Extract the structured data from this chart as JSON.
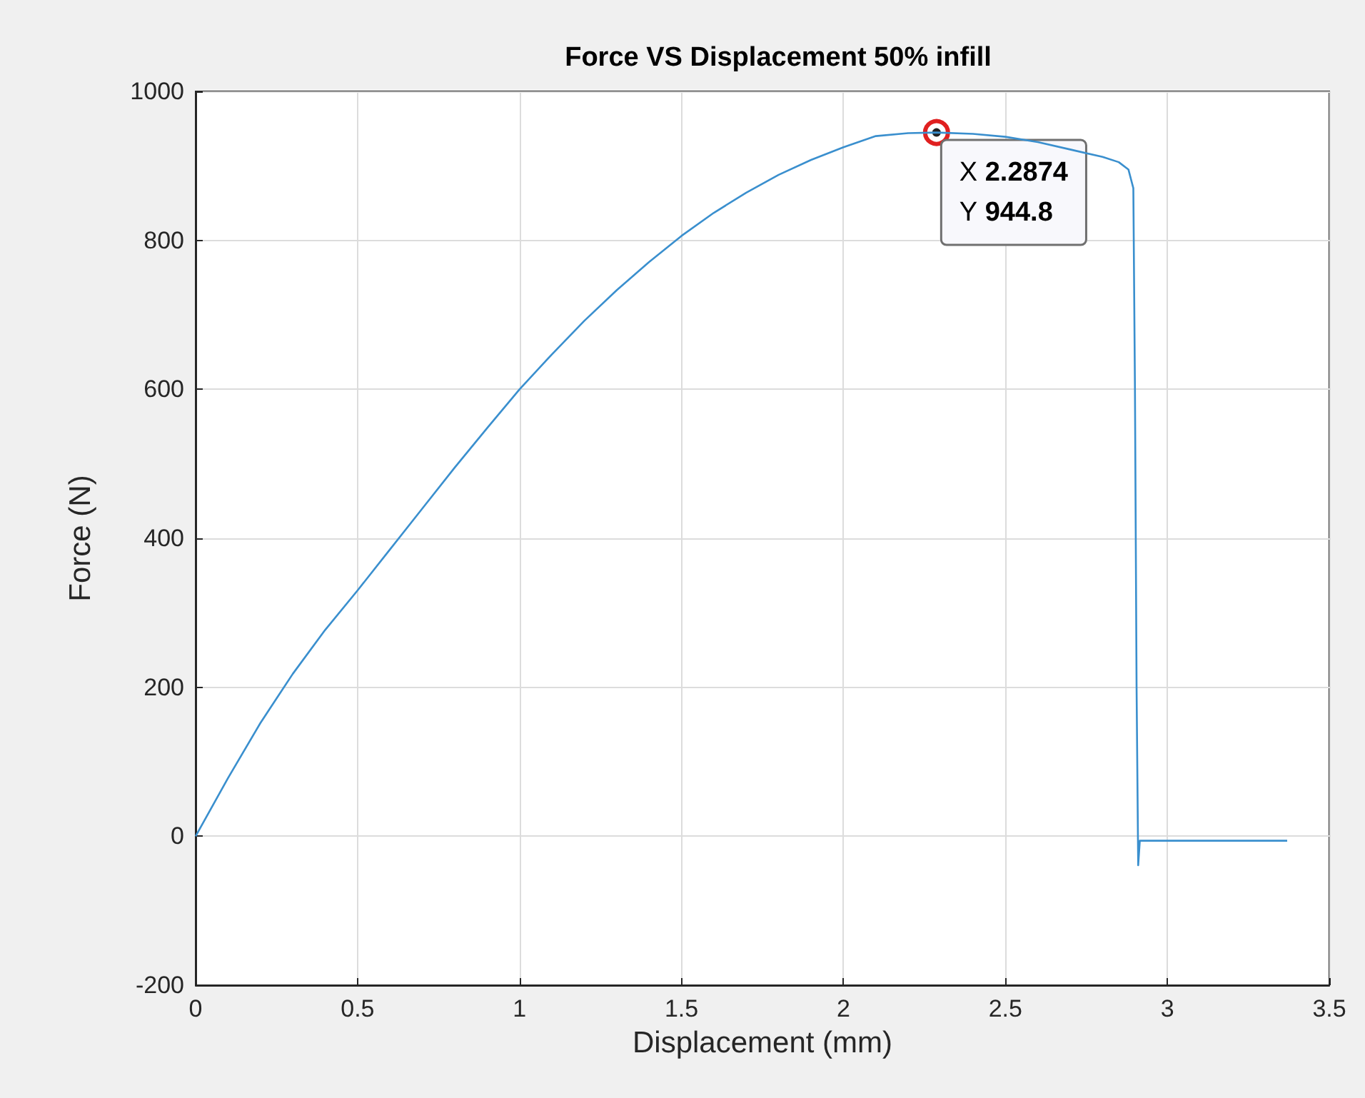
{
  "chart_data": {
    "type": "line",
    "title": "Force VS Displacement 50% infill",
    "xlabel": "Displacement (mm)",
    "ylabel": "Force (N)",
    "xlim": [
      0,
      3.5
    ],
    "xticks": [
      0,
      0.5,
      1,
      1.5,
      2,
      2.5,
      3,
      3.5
    ],
    "ylim": [
      -200,
      1000
    ],
    "yticks": [
      -200,
      0,
      200,
      400,
      600,
      800,
      1000
    ],
    "grid": true,
    "marker": "none",
    "line_style": "solid",
    "series": [
      {
        "color": "#3a8fce",
        "x": [
          0,
          0.1,
          0.2,
          0.25,
          0.3,
          0.4,
          0.5,
          0.6,
          0.7,
          0.8,
          0.9,
          1.0,
          1.1,
          1.2,
          1.3,
          1.4,
          1.5,
          1.6,
          1.7,
          1.8,
          1.9,
          2.0,
          2.1,
          2.2,
          2.2874,
          2.4,
          2.5,
          2.6,
          2.7,
          2.8,
          2.85,
          2.88,
          2.895,
          2.9,
          2.905,
          2.91,
          2.915,
          3.0,
          3.37
        ],
        "values": [
          0,
          78,
          152,
          185,
          218,
          277,
          330,
          385,
          440,
          495,
          548,
          600,
          647,
          692,
          733,
          771,
          806,
          837,
          864,
          888,
          908,
          925,
          940,
          944,
          944.8,
          943,
          939,
          932,
          922,
          912,
          905,
          895,
          870,
          600,
          200,
          -39,
          -6,
          -6,
          -6
        ]
      }
    ],
    "annotations": [
      {
        "text": "X 2.2874\nY 944.8",
        "x": 2.2874,
        "y": 944.8
      }
    ]
  }
}
